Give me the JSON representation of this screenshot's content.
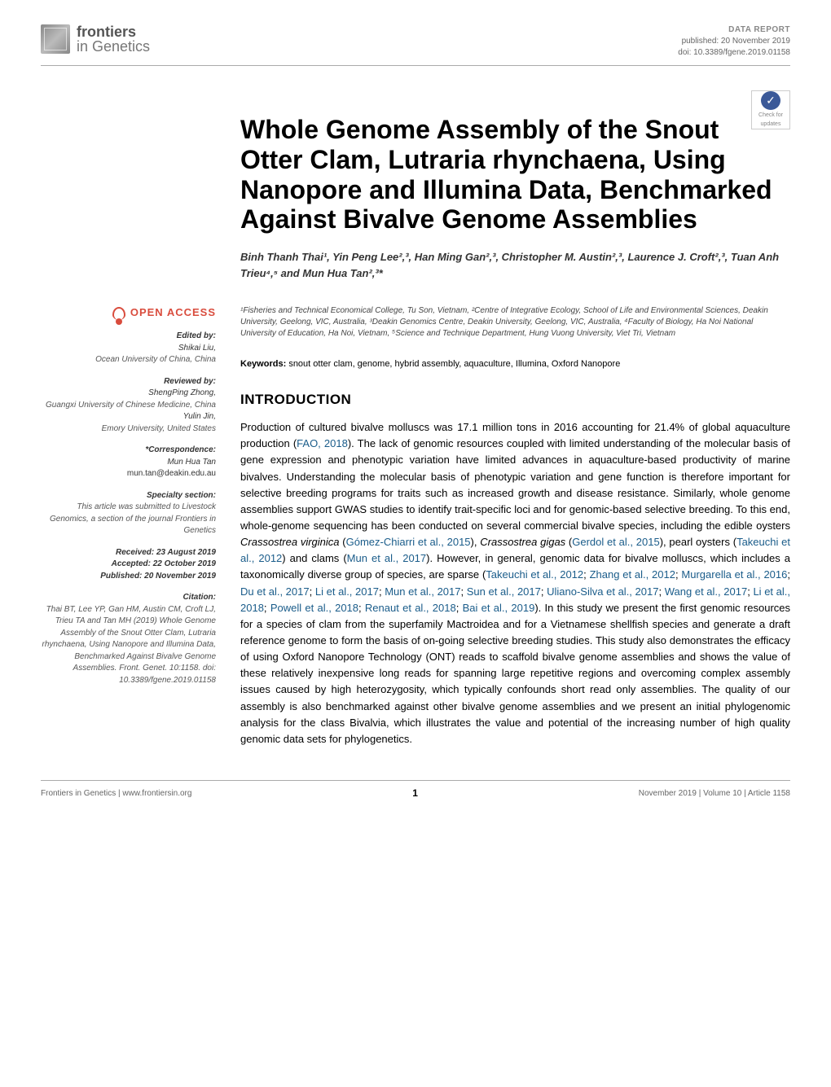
{
  "header": {
    "logo_line1": "frontiers",
    "logo_line2": "in Genetics",
    "article_type": "DATA REPORT",
    "published": "published: 20 November 2019",
    "doi": "doi: 10.3389/fgene.2019.01158"
  },
  "badge": {
    "checkmark": "✓",
    "line1": "Check for",
    "line2": "updates"
  },
  "title": "Whole Genome Assembly of the Snout Otter Clam, Lutraria rhynchaena, Using Nanopore and Illumina Data, Benchmarked Against Bivalve Genome Assemblies",
  "authors_html": "Binh Thanh Thai¹, Yin Peng Lee²,³, Han Ming Gan²,³, Christopher M. Austin²,³, Laurence J. Croft²,³, Tuan Anh Trieu⁴,⁵ and Mun Hua Tan²,³*",
  "affiliations": "¹Fisheries and Technical Economical College, Tu Son, Vietnam, ²Centre of Integrative Ecology, School of Life and Environmental Sciences, Deakin University, Geelong, VIC, Australia, ³Deakin Genomics Centre, Deakin University, Geelong, VIC, Australia, ⁴Faculty of Biology, Ha Noi National University of Education, Ha Noi, Vietnam, ⁵Science and Technique Department, Hung Vuong University, Viet Tri, Vietnam",
  "sidebar": {
    "open_access": "OPEN ACCESS",
    "edited_by_hdr": "Edited by:",
    "edited_by_name": "Shikai Liu,",
    "edited_by_aff": "Ocean University of China, China",
    "reviewed_by_hdr": "Reviewed by:",
    "rev1_name": "ShengPing Zhong,",
    "rev1_aff": "Guangxi University of Chinese Medicine, China",
    "rev2_name": "Yulin Jin,",
    "rev2_aff": "Emory University, United States",
    "corr_hdr": "*Correspondence:",
    "corr_name": "Mun Hua Tan",
    "corr_email": "mun.tan@deakin.edu.au",
    "specialty_hdr": "Specialty section:",
    "specialty_body": "This article was submitted to Livestock Genomics, a section of the journal Frontiers in Genetics",
    "received": "Received: 23 August 2019",
    "accepted": "Accepted: 22 October 2019",
    "published": "Published: 20 November 2019",
    "citation_hdr": "Citation:",
    "citation_body": "Thai BT, Lee YP, Gan HM, Austin CM, Croft LJ, Trieu TA and Tan MH (2019) Whole Genome Assembly of the Snout Otter Clam, Lutraria rhynchaena, Using Nanopore and Illumina Data, Benchmarked Against Bivalve Genome Assemblies. Front. Genet. 10:1158. doi: 10.3389/fgene.2019.01158"
  },
  "keywords_label": "Keywords:",
  "keywords": "snout otter clam, genome, hybrid assembly, aquaculture, Illumina, Oxford Nanopore",
  "section_title": "INTRODUCTION",
  "body": {
    "p1a": "Production of cultured bivalve molluscs was 17.1 million tons in 2016 accounting for 21.4% of global aquaculture production (",
    "r1": "FAO, 2018",
    "p1b": "). The lack of genomic resources coupled with limited understanding of the molecular basis of gene expression and phenotypic variation have limited advances in aquaculture-based productivity of marine bivalves. Understanding the molecular basis of phenotypic variation and gene function is therefore important for selective breeding programs for traits such as increased growth and disease resistance. Similarly, whole genome assemblies support GWAS studies to identify trait-specific loci and for genomic-based selective breeding. To this end, whole-genome sequencing has been conducted on several commercial bivalve species, including the edible oysters ",
    "sp1": "Crassostrea virginica",
    "p1c": " (",
    "r2": "Gómez-Chiarri et al., 2015",
    "p1d": "), ",
    "sp2": "Crassostrea gigas",
    "p1e": " (",
    "r3": "Gerdol et al., 2015",
    "p1f": "), pearl oysters (",
    "r4": "Takeuchi et al., 2012",
    "p1g": ") and clams (",
    "r5": "Mun et al., 2017",
    "p1h": "). However, in general, genomic data for bivalve molluscs, which includes a taxonomically diverse group of species, are sparse (",
    "r6": "Takeuchi et al., 2012",
    "p1i": "; ",
    "r7": "Zhang et al., 2012",
    "p1j": "; ",
    "r8": "Murgarella et al., 2016",
    "p1k": "; ",
    "r9": "Du et al., 2017",
    "p1l": "; ",
    "r10": "Li et al., 2017",
    "p1m": "; ",
    "r11": "Mun et al., 2017",
    "p1n": "; ",
    "r12": "Sun et al., 2017",
    "p1o": "; ",
    "r13": "Uliano-Silva et al., 2017",
    "p1p": "; ",
    "r14": "Wang et al., 2017",
    "p1q": "; ",
    "r15": "Li et al., 2018",
    "p1r": "; ",
    "r16": "Powell et al., 2018",
    "p1s": "; ",
    "r17": "Renaut et al., 2018",
    "p1t": "; ",
    "r18": "Bai et al., 2019",
    "p1u": "). In this study we present the first genomic resources for a species of clam from the superfamily Mactroidea and for a Vietnamese shellfish species and generate a draft reference genome to form the basis of on-going selective breeding studies. This study also demonstrates the efficacy of using Oxford Nanopore Technology (ONT) reads to scaffold bivalve genome assemblies and shows the value of these relatively inexpensive long reads for spanning large repetitive regions and overcoming complex assembly issues caused by high heterozygosity, which typically confounds short read only assemblies. The quality of our assembly is also benchmarked against other bivalve genome assemblies and we present an initial phylogenomic analysis for the class Bivalvia, which illustrates the value and potential of the increasing number of high quality genomic data sets for phylogenetics."
  },
  "footer": {
    "left": "Frontiers in Genetics | www.frontiersin.org",
    "page": "1",
    "right": "November 2019 | Volume 10 | Article 1158"
  },
  "colors": {
    "open_access": "#d94c3d",
    "ref_link": "#1a5c8a",
    "meta_text": "#666666",
    "divider": "#aaaaaa"
  }
}
